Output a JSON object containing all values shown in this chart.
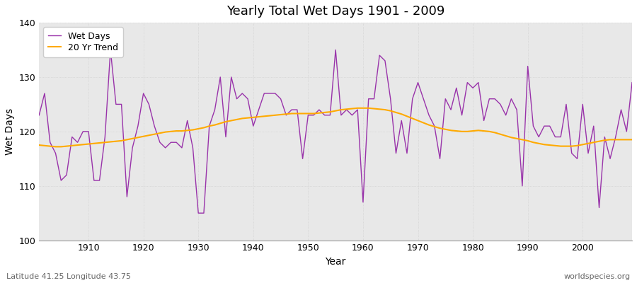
{
  "title": "Yearly Total Wet Days 1901 - 2009",
  "xlabel": "Year",
  "ylabel": "Wet Days",
  "footnote_left": "Latitude 41.25 Longitude 43.75",
  "footnote_right": "worldspecies.org",
  "ylim": [
    100,
    140
  ],
  "xlim": [
    1901,
    2009
  ],
  "line_color": "#9933aa",
  "trend_color": "#ffaa00",
  "bg_color": "#e8e8e8",
  "fig_color": "#ffffff",
  "grid_color": "#cccccc",
  "legend_labels": [
    "Wet Days",
    "20 Yr Trend"
  ],
  "years": [
    1901,
    1902,
    1903,
    1904,
    1905,
    1906,
    1907,
    1908,
    1909,
    1910,
    1911,
    1912,
    1913,
    1914,
    1915,
    1916,
    1917,
    1918,
    1919,
    1920,
    1921,
    1922,
    1923,
    1924,
    1925,
    1926,
    1927,
    1928,
    1929,
    1930,
    1931,
    1932,
    1933,
    1934,
    1935,
    1936,
    1937,
    1938,
    1939,
    1940,
    1941,
    1942,
    1943,
    1944,
    1945,
    1946,
    1947,
    1948,
    1949,
    1950,
    1951,
    1952,
    1953,
    1954,
    1955,
    1956,
    1957,
    1958,
    1959,
    1960,
    1961,
    1962,
    1963,
    1964,
    1965,
    1966,
    1967,
    1968,
    1969,
    1970,
    1971,
    1972,
    1973,
    1974,
    1975,
    1976,
    1977,
    1978,
    1979,
    1980,
    1981,
    1982,
    1983,
    1984,
    1985,
    1986,
    1987,
    1988,
    1989,
    1990,
    1991,
    1992,
    1993,
    1994,
    1995,
    1996,
    1997,
    1998,
    1999,
    2000,
    2001,
    2002,
    2003,
    2004,
    2005,
    2006,
    2007,
    2008,
    2009
  ],
  "wet_days": [
    123,
    127,
    118,
    116,
    111,
    112,
    119,
    118,
    120,
    120,
    111,
    111,
    119,
    135,
    125,
    125,
    108,
    117,
    121,
    127,
    125,
    121,
    118,
    117,
    118,
    118,
    117,
    122,
    117,
    105,
    105,
    121,
    124,
    130,
    119,
    130,
    126,
    127,
    126,
    121,
    124,
    127,
    127,
    127,
    126,
    123,
    124,
    124,
    115,
    123,
    123,
    124,
    123,
    123,
    135,
    123,
    124,
    123,
    124,
    107,
    126,
    126,
    134,
    133,
    126,
    116,
    122,
    116,
    126,
    129,
    126,
    123,
    121,
    115,
    126,
    124,
    128,
    123,
    129,
    128,
    129,
    122,
    126,
    126,
    125,
    123,
    126,
    124,
    110,
    132,
    121,
    119,
    121,
    121,
    119,
    119,
    125,
    116,
    115,
    125,
    116,
    121,
    106,
    119,
    115,
    119,
    124,
    120,
    129
  ],
  "trend": [
    117.5,
    117.4,
    117.3,
    117.2,
    117.2,
    117.3,
    117.4,
    117.5,
    117.6,
    117.7,
    117.8,
    117.9,
    118.0,
    118.1,
    118.2,
    118.3,
    118.5,
    118.7,
    118.9,
    119.1,
    119.3,
    119.5,
    119.7,
    119.9,
    120.0,
    120.1,
    120.1,
    120.2,
    120.3,
    120.5,
    120.7,
    121.0,
    121.2,
    121.5,
    121.8,
    122.0,
    122.2,
    122.4,
    122.5,
    122.6,
    122.7,
    122.8,
    122.9,
    123.0,
    123.1,
    123.2,
    123.3,
    123.3,
    123.3,
    123.3,
    123.3,
    123.4,
    123.5,
    123.6,
    123.8,
    124.0,
    124.1,
    124.2,
    124.3,
    124.3,
    124.3,
    124.2,
    124.1,
    124.0,
    123.8,
    123.5,
    123.2,
    122.8,
    122.4,
    122.0,
    121.6,
    121.2,
    120.9,
    120.6,
    120.4,
    120.2,
    120.1,
    120.0,
    120.0,
    120.1,
    120.2,
    120.1,
    120.0,
    119.8,
    119.5,
    119.2,
    118.9,
    118.7,
    118.5,
    118.3,
    118.0,
    117.8,
    117.6,
    117.5,
    117.4,
    117.3,
    117.3,
    117.3,
    117.4,
    117.6,
    117.8,
    118.0,
    118.2,
    118.4,
    118.5,
    118.5,
    118.5,
    118.5,
    118.5
  ]
}
